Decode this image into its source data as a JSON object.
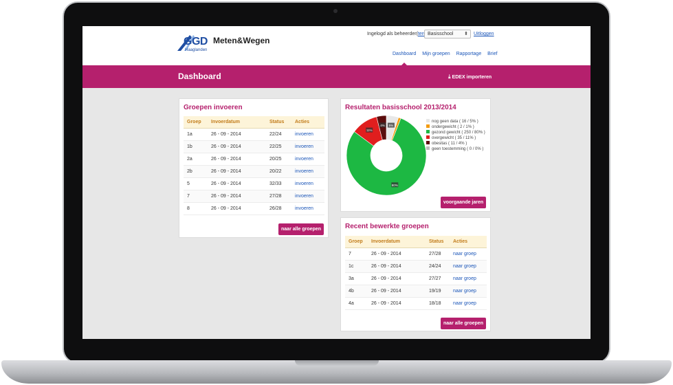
{
  "logo": {
    "mark": "GGD",
    "sub": "Haaglanden",
    "name": "Meten&Wegen"
  },
  "header": {
    "login_prefix": "Ingelogd als beheerder",
    "back_link": "terug",
    "school_select": "Basisschool",
    "logout": "Uitloggen"
  },
  "nav": [
    "Dashboard",
    "Mijn groepen",
    "Rapportage",
    "Brief"
  ],
  "banner": {
    "title": "Dashboard",
    "import_label": "EDEX importeren"
  },
  "groups_panel": {
    "title": "Groepen invoeren",
    "columns": [
      "Groep",
      "Invoerdatum",
      "Status",
      "Acties"
    ],
    "rows": [
      [
        "1a",
        "26 - 09 - 2014",
        "22/24",
        "invoeren"
      ],
      [
        "1b",
        "26 - 09 - 2014",
        "22/25",
        "invoeren"
      ],
      [
        "2a",
        "26 - 09 - 2014",
        "20/25",
        "invoeren"
      ],
      [
        "2b",
        "26 - 09 - 2014",
        "20/22",
        "invoeren"
      ],
      [
        "5",
        "26 - 09 - 2014",
        "32/33",
        "invoeren"
      ],
      [
        "7",
        "26 - 09 - 2014",
        "27/28",
        "invoeren"
      ],
      [
        "8",
        "26 - 09 - 2014",
        "26/28",
        "invoeren"
      ]
    ],
    "button": "naar alle groepen"
  },
  "results_panel": {
    "title": "Resultaten basisschool 2013/2014",
    "button": "voorgaande jaren"
  },
  "chart_data": {
    "type": "pie",
    "series": [
      {
        "name": "nog geen data ( 16 / 5% )",
        "value": 5,
        "color": "#e8e8e8",
        "label": "5%"
      },
      {
        "name": "ondergewicht ( 2 / 1% )",
        "value": 1,
        "color": "#f39c12",
        "label": ""
      },
      {
        "name": "gezond gewicht ( 250 / 80% )",
        "value": 80,
        "color": "#1db843",
        "label": "80%"
      },
      {
        "name": "overgewicht ( 35 / 11% )",
        "value": 11,
        "color": "#e01e1e",
        "label": "11%"
      },
      {
        "name": "obesitas ( 11 / 4% )",
        "value": 4,
        "color": "#5a0d0d",
        "label": "4%"
      },
      {
        "name": "geen toestemming ( 0 / 0% )",
        "value": 0,
        "color": "#bdbdbd",
        "label": ""
      }
    ]
  },
  "recent_panel": {
    "title": "Recent bewerkte groepen",
    "columns": [
      "Groep",
      "Invoerdatum",
      "Status",
      "Acties"
    ],
    "rows": [
      [
        "7",
        "26 - 09 - 2014",
        "27/28",
        "naar groep"
      ],
      [
        "1c",
        "26 - 09 - 2014",
        "24/24",
        "naar groep"
      ],
      [
        "3a",
        "26 - 09 - 2014",
        "27/27",
        "naar groep"
      ],
      [
        "4b",
        "26 - 09 - 2014",
        "19/19",
        "naar groep"
      ],
      [
        "4a",
        "26 - 09 - 2014",
        "18/18",
        "naar groep"
      ]
    ],
    "button": "naar alle groepen"
  }
}
